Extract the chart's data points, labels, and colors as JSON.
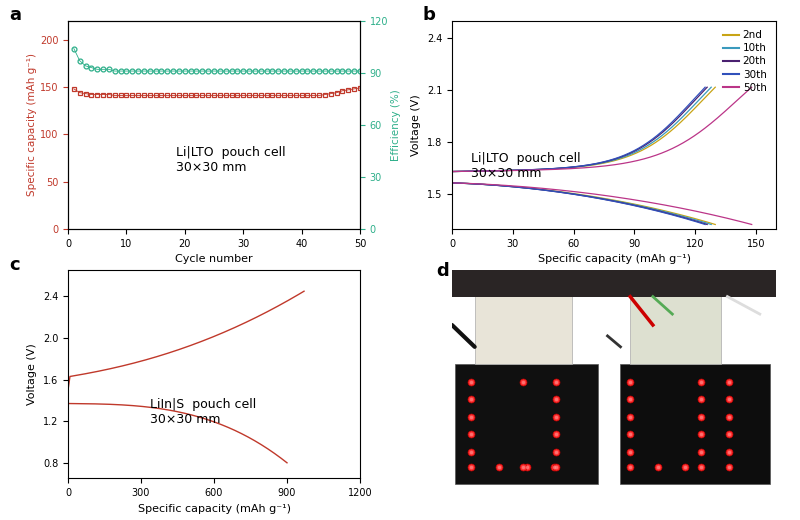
{
  "panel_a": {
    "cycles": [
      1,
      2,
      3,
      4,
      5,
      6,
      7,
      8,
      9,
      10,
      11,
      12,
      13,
      14,
      15,
      16,
      17,
      18,
      19,
      20,
      21,
      22,
      23,
      24,
      25,
      26,
      27,
      28,
      29,
      30,
      31,
      32,
      33,
      34,
      35,
      36,
      37,
      38,
      39,
      40,
      41,
      42,
      43,
      44,
      45,
      46,
      47,
      48,
      49,
      50
    ],
    "discharge_cap": [
      148,
      144,
      143,
      142,
      142,
      142,
      142,
      141,
      141,
      141,
      141,
      141,
      141,
      141,
      141,
      141,
      141,
      141,
      141,
      141,
      141,
      141,
      141,
      141,
      141,
      141,
      141,
      141,
      141,
      141,
      141,
      141,
      141,
      141,
      141,
      141,
      141,
      141,
      141,
      141,
      141,
      141,
      141,
      142,
      143,
      144,
      146,
      147,
      148,
      149
    ],
    "efficiency": [
      104,
      97,
      94,
      93,
      92,
      92,
      92,
      91,
      91,
      91,
      91,
      91,
      91,
      91,
      91,
      91,
      91,
      91,
      91,
      91,
      91,
      91,
      91,
      91,
      91,
      91,
      91,
      91,
      91,
      91,
      91,
      91,
      91,
      91,
      91,
      91,
      91,
      91,
      91,
      91,
      91,
      91,
      91,
      91,
      91,
      91,
      91,
      91,
      91,
      91
    ],
    "cap_color": "#c0392b",
    "eff_color": "#2eaf8a",
    "label_line1": "Li|LTO  pouch cell",
    "label_line2": "30×30 mm",
    "ylabel_left": "Specific capacity (mAh g⁻¹)",
    "ylabel_right": "Efficiency (%)",
    "xlabel": "Cycle number",
    "ylim_left": [
      0,
      220
    ],
    "ylim_right": [
      0,
      120
    ],
    "yticks_left": [
      0,
      50,
      100,
      150,
      200
    ],
    "yticks_right": [
      0,
      30,
      60,
      90,
      120
    ],
    "xticks": [
      0,
      10,
      20,
      30,
      40,
      50
    ],
    "xlim": [
      0,
      50
    ]
  },
  "panel_b": {
    "colors": [
      "#c8a415",
      "#3a9abd",
      "#4a2070",
      "#3050bb",
      "#bb3588"
    ],
    "labels": [
      "2nd",
      "10th",
      "20th",
      "30th",
      "50th"
    ],
    "label_line1": "Li|LTO  pouch cell",
    "label_line2": "30×30 mm",
    "ylabel": "Voltage (V)",
    "xlabel": "Specific capacity (mAh g⁻¹)",
    "ylim": [
      1.3,
      2.5
    ],
    "xlim": [
      0,
      160
    ],
    "yticks": [
      1.5,
      1.8,
      2.1,
      2.4
    ],
    "xticks": [
      0,
      30,
      60,
      90,
      120,
      150
    ],
    "cap_maxes": [
      130,
      128,
      126,
      125,
      148
    ]
  },
  "panel_c": {
    "color": "#c0392b",
    "label_line1": "LiIn|S  pouch cell",
    "label_line2": "30×30 mm",
    "ylabel": "Voltage (V)",
    "xlabel": "Specific capacity (mAh g⁻¹)",
    "ylim": [
      0.65,
      2.65
    ],
    "xlim": [
      0,
      1200
    ],
    "yticks": [
      0.8,
      1.2,
      1.6,
      2.0,
      2.4
    ],
    "xticks": [
      0,
      300,
      600,
      900,
      1200
    ]
  },
  "background_color": "#ffffff"
}
